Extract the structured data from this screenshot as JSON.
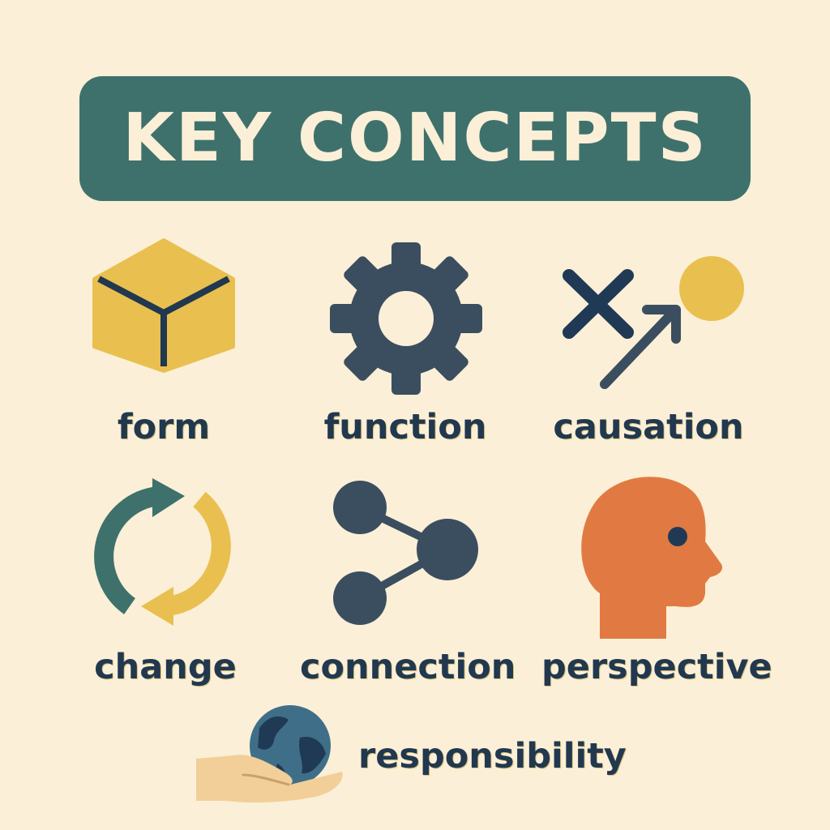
{
  "title": "KEY CONCEPTS",
  "concepts": [
    {
      "label": "form",
      "icon": "cube-icon"
    },
    {
      "label": "function",
      "icon": "gear-icon"
    },
    {
      "label": "causation",
      "icon": "cross-arrow-circle-icon"
    },
    {
      "label": "change",
      "icon": "cycle-arrows-icon"
    },
    {
      "label": "connection",
      "icon": "network-nodes-icon"
    },
    {
      "label": "perspective",
      "icon": "head-profile-icon"
    },
    {
      "label": "responsibility",
      "icon": "hand-holding-globe-icon"
    }
  ],
  "colors": {
    "background": "#fbefd7",
    "banner": "#3f716c",
    "banner_text": "#fbefd7",
    "label_text": "#21384f",
    "dark_icon": "#3b4e5f",
    "navy": "#203a56",
    "yellow": "#e9c04f",
    "teal": "#3f716c",
    "orange": "#e17a42",
    "skin": "#f2cf98"
  }
}
